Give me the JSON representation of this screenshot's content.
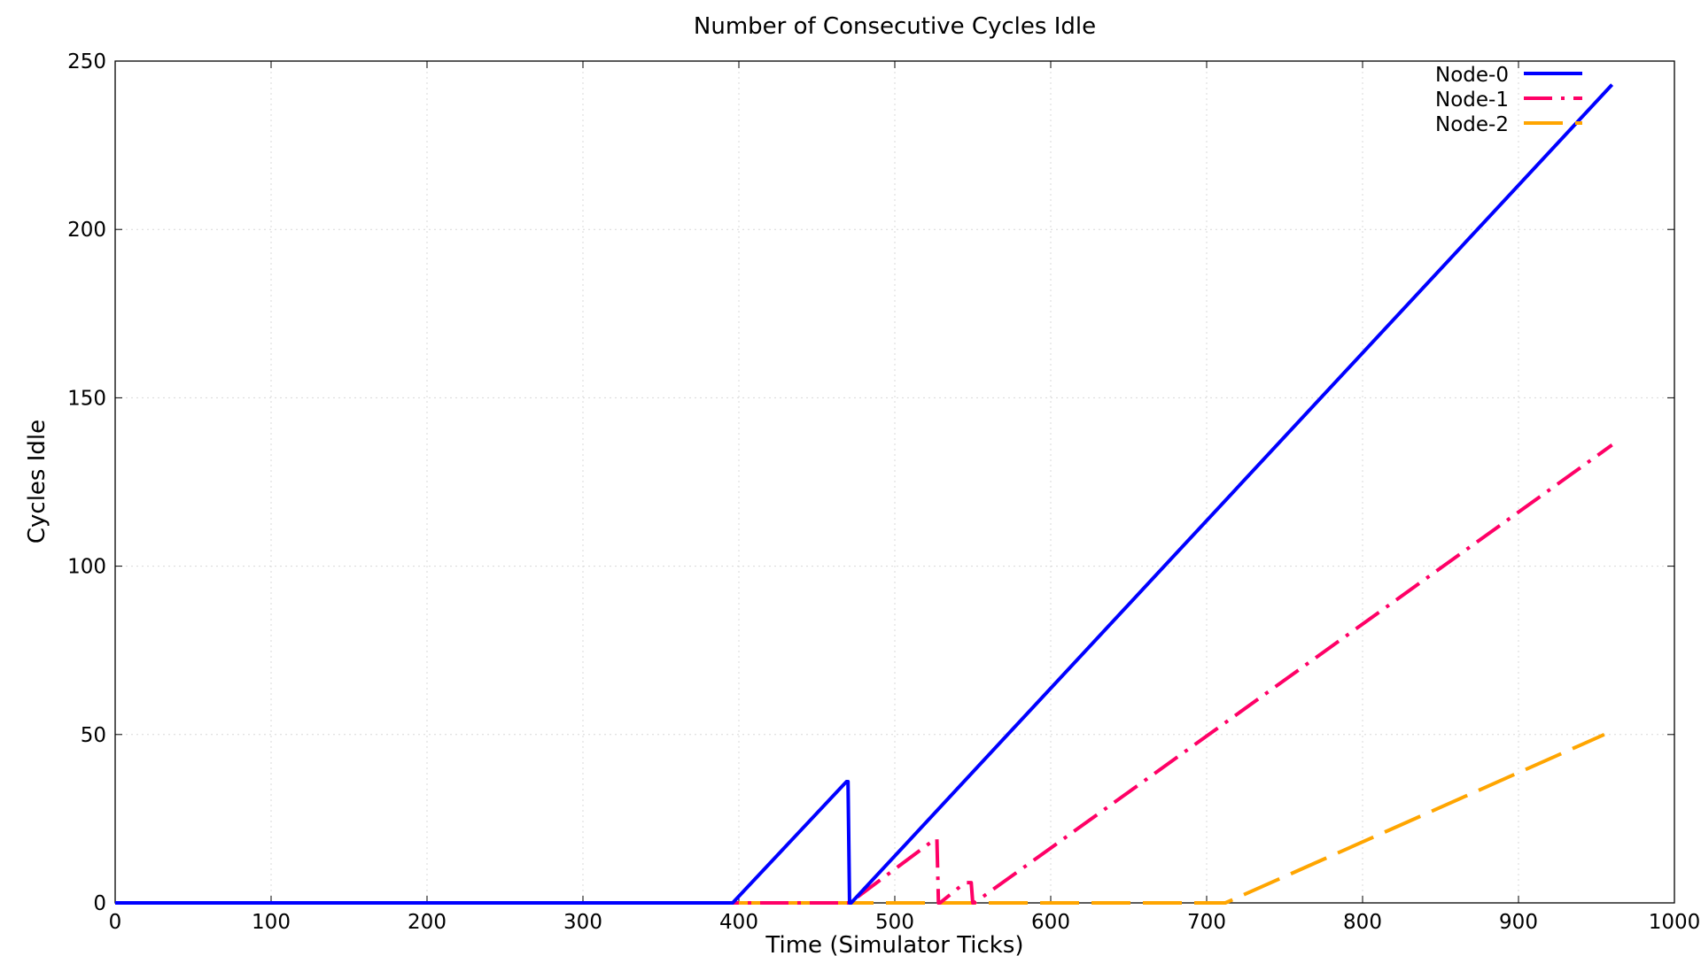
{
  "chart_data": {
    "type": "line",
    "title": "Number of Consecutive Cycles Idle",
    "xlabel": "Time (Simulator Ticks)",
    "ylabel": "Cycles Idle",
    "xlim": [
      0,
      1000
    ],
    "ylim": [
      0,
      250
    ],
    "x_ticks": [
      0,
      100,
      200,
      300,
      400,
      500,
      600,
      700,
      800,
      900,
      1000
    ],
    "y_ticks": [
      0,
      50,
      100,
      150,
      200,
      250
    ],
    "grid": true,
    "legend_position": "top-right",
    "series": [
      {
        "name": "Node-0",
        "color": "#0000ff",
        "dash": "solid",
        "points": [
          [
            0,
            0
          ],
          [
            396,
            0
          ],
          [
            469,
            36
          ],
          [
            470,
            36
          ],
          [
            471,
            0
          ],
          [
            472,
            0
          ],
          [
            960,
            243
          ]
        ]
      },
      {
        "name": "Node-1",
        "color": "#ff0066",
        "dash": "dash-dot",
        "points": [
          [
            0,
            0
          ],
          [
            471,
            0
          ],
          [
            526,
            19
          ],
          [
            527,
            19
          ],
          [
            528,
            0
          ],
          [
            529,
            0
          ],
          [
            545,
            6
          ],
          [
            549,
            6
          ],
          [
            550,
            0
          ],
          [
            551,
            0
          ],
          [
            960,
            136
          ]
        ]
      },
      {
        "name": "Node-2",
        "color": "#ffa500",
        "dash": "long-dash",
        "points": [
          [
            0,
            0
          ],
          [
            712,
            0
          ],
          [
            955,
            50
          ]
        ]
      }
    ]
  }
}
